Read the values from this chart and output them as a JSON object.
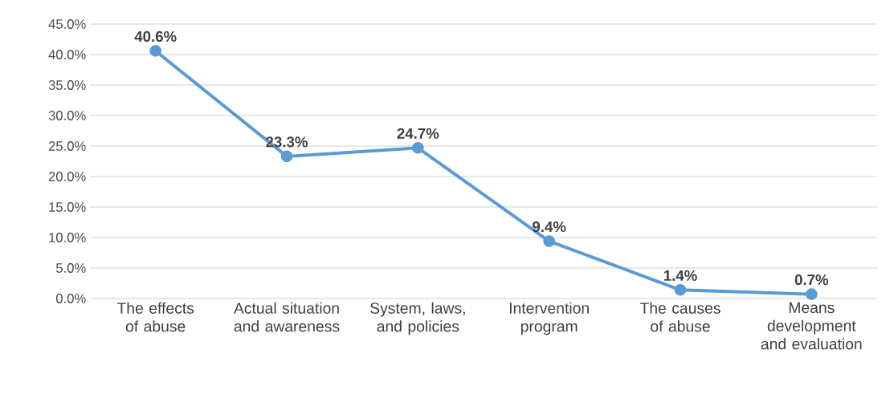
{
  "chart_data": {
    "type": "line",
    "categories": [
      "The effects of abuse",
      "Actual situation and awareness",
      "System, laws, and policies",
      "Intervention program",
      "The causes of abuse",
      "Means development and evaluation"
    ],
    "values": [
      40.6,
      23.3,
      24.7,
      9.4,
      1.4,
      0.7
    ],
    "value_labels": [
      "40.6%",
      "23.3%",
      "24.7%",
      "9.4%",
      "1.4%",
      "0.7%"
    ],
    "color": "#5b9bd5",
    "ylim": [
      0,
      45
    ],
    "yticks": [
      {
        "value": 0,
        "label": "0.0%"
      },
      {
        "value": 5,
        "label": "5.0%"
      },
      {
        "value": 10,
        "label": "10.0%"
      },
      {
        "value": 15,
        "label": "15.0%"
      },
      {
        "value": 20,
        "label": "20.0%"
      },
      {
        "value": 25,
        "label": "25.0%"
      },
      {
        "value": 30,
        "label": "30.0%"
      },
      {
        "value": 35,
        "label": "35.0%"
      },
      {
        "value": 40,
        "label": "40.0%"
      },
      {
        "value": 45,
        "label": "45.0%"
      }
    ],
    "grid": "y",
    "marker": "circle",
    "line_style": "solid"
  }
}
